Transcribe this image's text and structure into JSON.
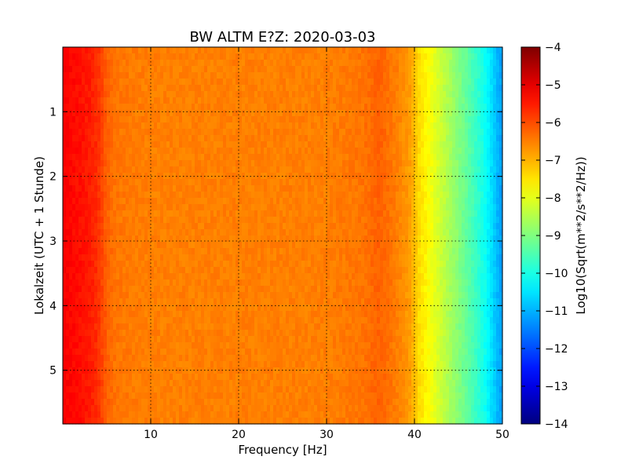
{
  "chart_data": {
    "type": "heatmap",
    "title": "BW ALTM E?Z: 2020-03-03",
    "xlabel": "Frequency [Hz]",
    "ylabel": "Lokalzeit (UTC + 1 Stunde)",
    "xlim": [
      0,
      50
    ],
    "ylim": [
      0,
      5.83
    ],
    "y_inverted": true,
    "xticks": [
      10,
      20,
      30,
      40,
      50
    ],
    "yticks": [
      1,
      2,
      3,
      4,
      5
    ],
    "grid": true,
    "colormap": "jet",
    "colorbar": {
      "label": "Log10(Sqrt(m**2/s**2/Hz))",
      "range": [
        -14,
        -4
      ],
      "ticks": [
        -4,
        -5,
        -6,
        -7,
        -8,
        -9,
        -10,
        -11,
        -12,
        -13,
        -14
      ]
    },
    "frequency_profile": {
      "frequency_hz": [
        0,
        1,
        2,
        3,
        4,
        5,
        6,
        10,
        20,
        30,
        34,
        36,
        38,
        39.5,
        40.5,
        42,
        44,
        46,
        48,
        49.5,
        50
      ],
      "log10_amplitude": [
        -5.2,
        -5.3,
        -5.4,
        -5.5,
        -5.7,
        -6.2,
        -6.4,
        -6.5,
        -6.5,
        -6.5,
        -6.4,
        -6.2,
        -6.5,
        -6.8,
        -7.4,
        -7.9,
        -8.6,
        -9.3,
        -10.1,
        -11.0,
        -11.2
      ]
    },
    "colors": {
      "jet": [
        "#00007f",
        "#0000ff",
        "#007fff",
        "#00ffff",
        "#7fff7f",
        "#ffff00",
        "#ff7f00",
        "#ff0000",
        "#7f0000"
      ]
    }
  }
}
